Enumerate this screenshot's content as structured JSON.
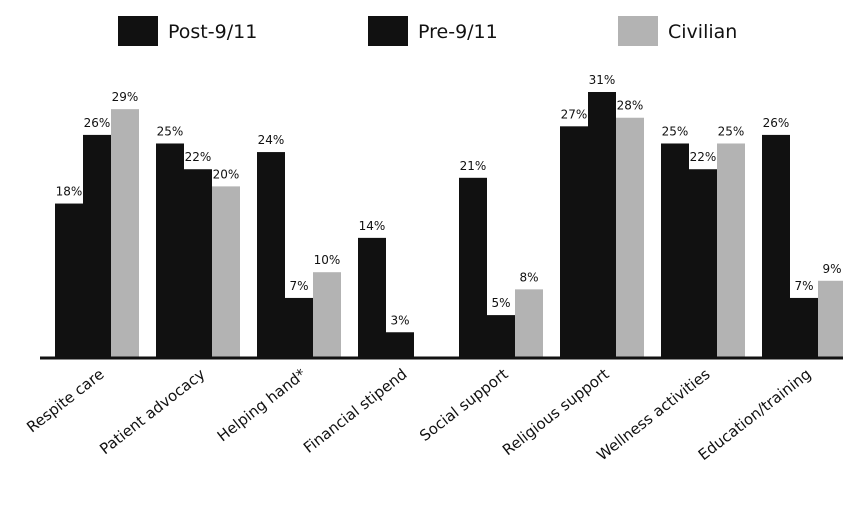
{
  "chart_data": {
    "type": "bar",
    "categories": [
      "Respite care",
      "Patient advocacy",
      "Helping hand*",
      "Financial stipend",
      "Social support",
      "Religious support",
      "Wellness activities",
      "Education/training"
    ],
    "series": [
      {
        "name": "Post-9/11",
        "color": "#111111",
        "values": [
          18,
          25,
          24,
          14,
          21,
          27,
          25,
          26
        ],
        "labels": [
          "18%",
          "25%",
          "24%",
          "14%",
          "21%",
          "27%",
          "25%",
          "26%"
        ]
      },
      {
        "name": "Pre-9/11",
        "color": "#111111",
        "values": [
          26,
          22,
          7,
          3,
          5,
          31,
          22,
          7
        ],
        "labels": [
          "26%",
          "22%",
          "7%",
          "3%",
          "5%",
          "31%",
          "22%",
          "7%"
        ]
      },
      {
        "name": "Civilian",
        "color": "#b3b3b3",
        "values": [
          29,
          20,
          10,
          0,
          8,
          28,
          25,
          9
        ],
        "labels": [
          "29%",
          "20%",
          "10%",
          "",
          "8%",
          "28%",
          "25%",
          "9%"
        ]
      }
    ],
    "ylim": [
      0,
      31
    ],
    "grid": false,
    "legend_position": "top"
  }
}
